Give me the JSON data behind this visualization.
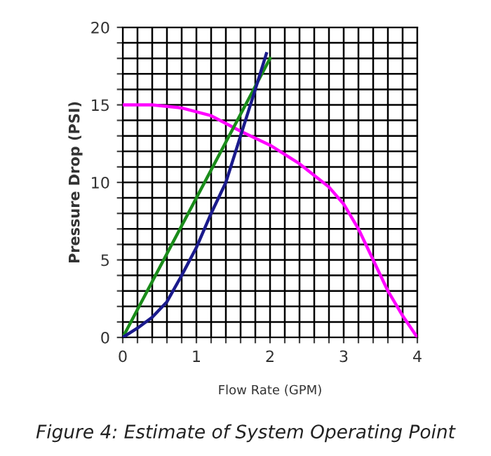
{
  "chart_data": {
    "type": "line",
    "xlabel": "Flow Rate (GPM)",
    "ylabel": "Pressure Drop (PSI)",
    "annotations": [
      "Figure 4: Estimate of System Operating Point"
    ],
    "xlim": [
      0,
      4
    ],
    "ylim": [
      0,
      20
    ],
    "xticks": [
      0,
      {
        "value": 0.2,
        "label": null
      },
      {
        "value": 0.4,
        "label": null
      },
      {
        "value": 0.6,
        "label": null
      },
      {
        "value": 0.8,
        "label": null
      },
      1,
      {
        "value": 1.2,
        "label": null
      },
      {
        "value": 1.4,
        "label": null
      },
      {
        "value": 1.6,
        "label": null
      },
      {
        "value": 1.8,
        "label": null
      },
      2,
      {
        "value": 2.2,
        "label": null
      },
      {
        "value": 2.4,
        "label": null
      },
      {
        "value": 2.6,
        "label": null
      },
      {
        "value": 2.8,
        "label": null
      },
      3,
      {
        "value": 3.2,
        "label": null
      },
      {
        "value": 3.4,
        "label": null
      },
      {
        "value": 3.6,
        "label": null
      },
      {
        "value": 3.8,
        "label": null
      },
      4
    ],
    "yticks": [
      0,
      {
        "value": 1,
        "label": null
      },
      {
        "value": 2,
        "label": null
      },
      {
        "value": 3,
        "label": null
      },
      {
        "value": 4,
        "label": null
      },
      5,
      {
        "value": 6,
        "label": null
      },
      {
        "value": 7,
        "label": null
      },
      {
        "value": 8,
        "label": null
      },
      {
        "value": 9,
        "label": null
      },
      10,
      {
        "value": 11,
        "label": null
      },
      {
        "value": 12,
        "label": null
      },
      {
        "value": 13,
        "label": null
      },
      {
        "value": 14,
        "label": null
      },
      15,
      {
        "value": 16,
        "label": null
      },
      {
        "value": 17,
        "label": null
      },
      {
        "value": 18,
        "label": null
      },
      {
        "value": 19,
        "label": null
      },
      20
    ],
    "grid": true,
    "marker": "none",
    "line_style": "solid",
    "series": [
      {
        "color": "#ff00ff",
        "x": [
          0,
          0.4,
          0.8,
          1.2,
          1.6,
          2,
          2.4,
          2.8,
          3.0,
          3.2,
          3.4,
          3.6,
          3.8,
          4
        ],
        "values": [
          15,
          15,
          14.8,
          14.3,
          13.3,
          12.4,
          11.2,
          9.7,
          8.6,
          7,
          5,
          3,
          1.4,
          0
        ]
      },
      {
        "color": "#1a8c1a",
        "x": [
          0,
          2
        ],
        "values": [
          0,
          18
        ]
      },
      {
        "color": "#1a1a8c",
        "x": [
          0,
          0.2,
          0.4,
          0.6,
          0.8,
          1.0,
          1.2,
          1.4,
          1.6,
          1.8,
          1.95
        ],
        "values": [
          0,
          0.6,
          1.3,
          2.3,
          4,
          5.8,
          8,
          10,
          13,
          16,
          18.3
        ]
      }
    ]
  }
}
